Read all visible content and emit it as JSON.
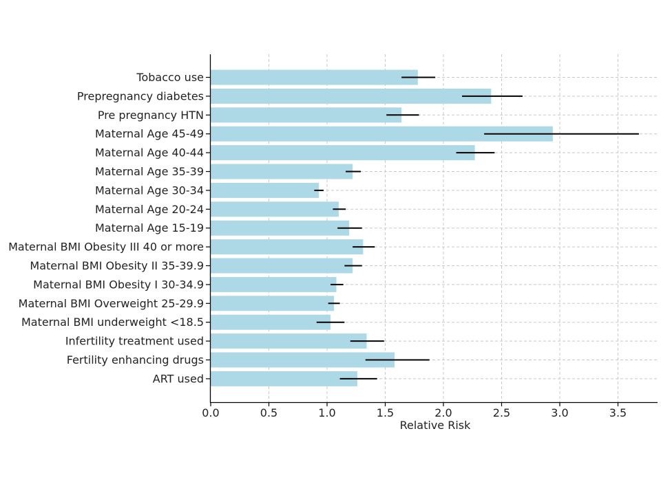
{
  "chart_data": {
    "type": "bar",
    "orientation": "horizontal",
    "title": "",
    "xlabel": "Relative Risk",
    "ylabel": "",
    "xlim": [
      0,
      3.85
    ],
    "xticks": [
      "0.0",
      "0.5",
      "1.0",
      "1.5",
      "2.0",
      "2.5",
      "3.0",
      "3.5"
    ],
    "grid": true,
    "bar_color": "#ADD8E6",
    "error_color": "#000000",
    "categories": [
      "Tobacco use",
      "Prepregnancy diabetes",
      "Pre pregnancy HTN",
      "Maternal Age 45-49",
      "Maternal Age 40-44",
      "Maternal Age 35-39",
      "Maternal Age 30-34",
      "Maternal Age 20-24",
      "Maternal Age 15-19",
      "Maternal BMI Obesity III 40 or more",
      "Maternal BMI Obesity II 35-39.9",
      "Maternal BMI Obesity I 30-34.9",
      "Maternal BMI Overweight 25-29.9",
      "Maternal BMI underweight <18.5",
      "Infertility treatment used",
      "Fertility enhancing drugs",
      "ART used"
    ],
    "values": [
      1.78,
      2.41,
      1.64,
      2.94,
      2.27,
      1.22,
      0.93,
      1.1,
      1.19,
      1.31,
      1.22,
      1.08,
      1.06,
      1.03,
      1.34,
      1.58,
      1.26
    ],
    "ci_low": [
      1.64,
      2.16,
      1.51,
      2.35,
      2.11,
      1.16,
      0.89,
      1.05,
      1.09,
      1.22,
      1.15,
      1.03,
      1.01,
      0.91,
      1.2,
      1.33,
      1.11
    ],
    "ci_high": [
      1.93,
      2.68,
      1.79,
      3.68,
      2.44,
      1.29,
      0.97,
      1.16,
      1.3,
      1.41,
      1.3,
      1.14,
      1.11,
      1.15,
      1.49,
      1.88,
      1.43
    ]
  }
}
